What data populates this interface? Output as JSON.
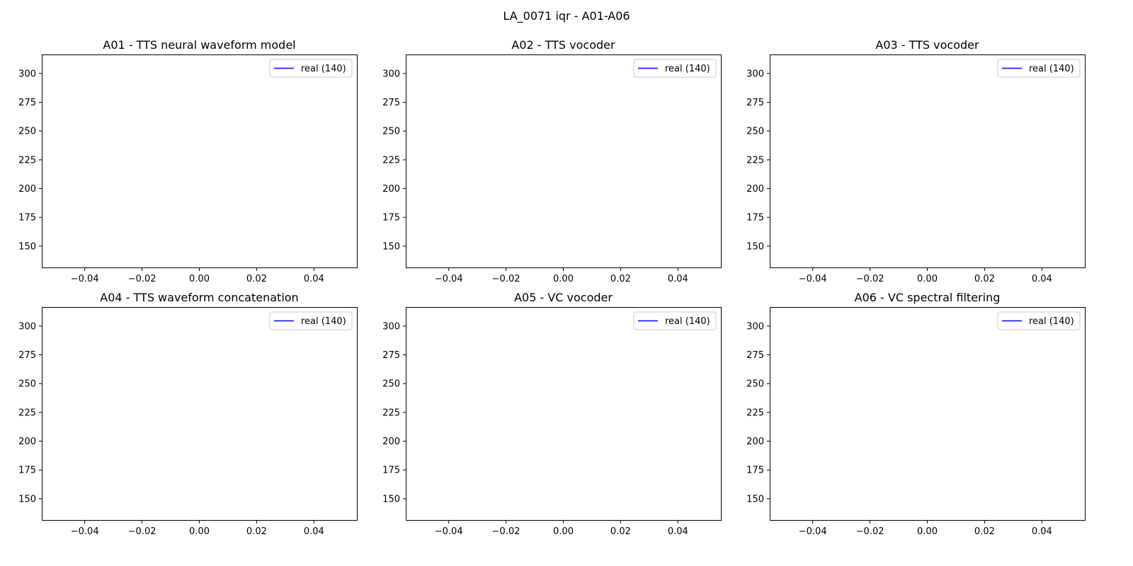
{
  "figure": {
    "suptitle": "LA_0071 iqr - A01-A06"
  },
  "chart_data": [
    {
      "type": "line",
      "title": "A01 - TTS neural waveform model",
      "xlabel": "",
      "ylabel": "",
      "xlim": [
        -0.055,
        0.055
      ],
      "ylim": [
        131.5,
        316.5
      ],
      "xticks": [
        -0.04,
        -0.02,
        0.0,
        0.02,
        0.04
      ],
      "xtick_labels": [
        "−0.04",
        "−0.02",
        "0.00",
        "0.02",
        "0.04"
      ],
      "yticks": [
        150,
        175,
        200,
        225,
        250,
        275,
        300
      ],
      "ytick_labels": [
        "150",
        "175",
        "200",
        "225",
        "250",
        "275",
        "300"
      ],
      "grid": false,
      "legend": "upper right",
      "series": [
        {
          "name": "real (140)",
          "color": "#0000ff",
          "x": [],
          "y": []
        }
      ]
    },
    {
      "type": "line",
      "title": "A02 - TTS vocoder",
      "xlabel": "",
      "ylabel": "",
      "xlim": [
        -0.055,
        0.055
      ],
      "ylim": [
        131.5,
        316.5
      ],
      "xticks": [
        -0.04,
        -0.02,
        0.0,
        0.02,
        0.04
      ],
      "xtick_labels": [
        "−0.04",
        "−0.02",
        "0.00",
        "0.02",
        "0.04"
      ],
      "yticks": [
        150,
        175,
        200,
        225,
        250,
        275,
        300
      ],
      "ytick_labels": [
        "150",
        "175",
        "200",
        "225",
        "250",
        "275",
        "300"
      ],
      "grid": false,
      "legend": "upper right",
      "series": [
        {
          "name": "real (140)",
          "color": "#0000ff",
          "x": [],
          "y": []
        }
      ]
    },
    {
      "type": "line",
      "title": "A03 - TTS vocoder",
      "xlabel": "",
      "ylabel": "",
      "xlim": [
        -0.055,
        0.055
      ],
      "ylim": [
        131.5,
        316.5
      ],
      "xticks": [
        -0.04,
        -0.02,
        0.0,
        0.02,
        0.04
      ],
      "xtick_labels": [
        "−0.04",
        "−0.02",
        "0.00",
        "0.02",
        "0.04"
      ],
      "yticks": [
        150,
        175,
        200,
        225,
        250,
        275,
        300
      ],
      "ytick_labels": [
        "150",
        "175",
        "200",
        "225",
        "250",
        "275",
        "300"
      ],
      "grid": false,
      "legend": "upper right",
      "series": [
        {
          "name": "real (140)",
          "color": "#0000ff",
          "x": [],
          "y": []
        }
      ]
    },
    {
      "type": "line",
      "title": "A04 - TTS waveform concatenation",
      "xlabel": "",
      "ylabel": "",
      "xlim": [
        -0.055,
        0.055
      ],
      "ylim": [
        131.5,
        316.5
      ],
      "xticks": [
        -0.04,
        -0.02,
        0.0,
        0.02,
        0.04
      ],
      "xtick_labels": [
        "−0.04",
        "−0.02",
        "0.00",
        "0.02",
        "0.04"
      ],
      "yticks": [
        150,
        175,
        200,
        225,
        250,
        275,
        300
      ],
      "ytick_labels": [
        "150",
        "175",
        "200",
        "225",
        "250",
        "275",
        "300"
      ],
      "grid": false,
      "legend": "upper right",
      "series": [
        {
          "name": "real (140)",
          "color": "#0000ff",
          "x": [],
          "y": []
        }
      ]
    },
    {
      "type": "line",
      "title": "A05 - VC vocoder",
      "xlabel": "",
      "ylabel": "",
      "xlim": [
        -0.055,
        0.055
      ],
      "ylim": [
        131.5,
        316.5
      ],
      "xticks": [
        -0.04,
        -0.02,
        0.0,
        0.02,
        0.04
      ],
      "xtick_labels": [
        "−0.04",
        "−0.02",
        "0.00",
        "0.02",
        "0.04"
      ],
      "yticks": [
        150,
        175,
        200,
        225,
        250,
        275,
        300
      ],
      "ytick_labels": [
        "150",
        "175",
        "200",
        "225",
        "250",
        "275",
        "300"
      ],
      "grid": false,
      "legend": "upper right",
      "series": [
        {
          "name": "real (140)",
          "color": "#0000ff",
          "x": [],
          "y": []
        }
      ]
    },
    {
      "type": "line",
      "title": "A06 - VC spectral filtering",
      "xlabel": "",
      "ylabel": "",
      "xlim": [
        -0.055,
        0.055
      ],
      "ylim": [
        131.5,
        316.5
      ],
      "xticks": [
        -0.04,
        -0.02,
        0.0,
        0.02,
        0.04
      ],
      "xtick_labels": [
        "−0.04",
        "−0.02",
        "0.00",
        "0.02",
        "0.04"
      ],
      "yticks": [
        150,
        175,
        200,
        225,
        250,
        275,
        300
      ],
      "ytick_labels": [
        "150",
        "175",
        "200",
        "225",
        "250",
        "275",
        "300"
      ],
      "grid": false,
      "legend": "upper right",
      "series": [
        {
          "name": "real (140)",
          "color": "#0000ff",
          "x": [],
          "y": []
        }
      ]
    }
  ]
}
